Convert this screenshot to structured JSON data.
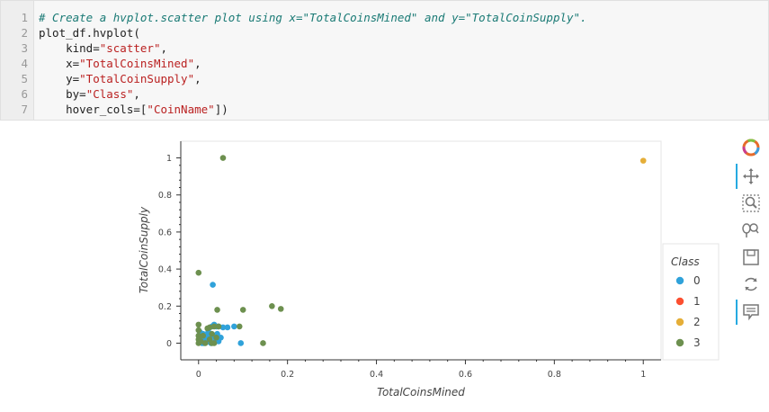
{
  "code_cell": {
    "lines": [
      {
        "n": "1",
        "segments": [
          {
            "t": "# Create a hvplot.scatter plot using x=\"TotalCoinsMined\" and y=\"TotalCoinSupply\".",
            "c": "comment"
          }
        ]
      },
      {
        "n": "2",
        "segments": [
          {
            "t": "plot_df.hvplot(",
            "c": ""
          }
        ]
      },
      {
        "n": "3",
        "segments": [
          {
            "t": "    kind=",
            "c": ""
          },
          {
            "t": "\"scatter\"",
            "c": "str"
          },
          {
            "t": ",",
            "c": ""
          }
        ]
      },
      {
        "n": "4",
        "segments": [
          {
            "t": "    x=",
            "c": ""
          },
          {
            "t": "\"TotalCoinsMined\"",
            "c": "str"
          },
          {
            "t": ",",
            "c": ""
          }
        ]
      },
      {
        "n": "5",
        "segments": [
          {
            "t": "    y=",
            "c": ""
          },
          {
            "t": "\"TotalCoinSupply\"",
            "c": "str"
          },
          {
            "t": ",",
            "c": ""
          }
        ]
      },
      {
        "n": "6",
        "segments": [
          {
            "t": "    by=",
            "c": ""
          },
          {
            "t": "\"Class\"",
            "c": "str"
          },
          {
            "t": ",",
            "c": ""
          }
        ]
      },
      {
        "n": "7",
        "segments": [
          {
            "t": "    hover_cols=[",
            "c": ""
          },
          {
            "t": "\"CoinName\"",
            "c": "str"
          },
          {
            "t": "])",
            "c": ""
          }
        ]
      }
    ]
  },
  "chart_data": {
    "type": "scatter",
    "xlabel": "TotalCoinsMined",
    "ylabel": "TotalCoinSupply",
    "xlim": [
      -0.04,
      1.04
    ],
    "ylim": [
      -0.09,
      1.09
    ],
    "x_ticks": [
      "0",
      "0.2",
      "0.4",
      "0.6",
      "0.8",
      "1"
    ],
    "x_tick_values": [
      0,
      0.2,
      0.4,
      0.6,
      0.8,
      1
    ],
    "y_ticks": [
      "0",
      "0.2",
      "0.4",
      "0.6",
      "0.8",
      "1"
    ],
    "y_tick_values": [
      0,
      0.2,
      0.4,
      0.6,
      0.8,
      1
    ],
    "legend_title": "Class",
    "legend_position": "right",
    "series": [
      {
        "name": "0",
        "color": "#30a2da",
        "points": [
          [
            0.003,
            0.06
          ],
          [
            0.006,
            0.02
          ],
          [
            0.01,
            0.05
          ],
          [
            0.012,
            0.0
          ],
          [
            0.015,
            0.03
          ],
          [
            0.018,
            0.045
          ],
          [
            0.02,
            0.01
          ],
          [
            0.022,
            0.06
          ],
          [
            0.025,
            0.03
          ],
          [
            0.028,
            0.0
          ],
          [
            0.03,
            0.09
          ],
          [
            0.032,
            0.04
          ],
          [
            0.035,
            0.1
          ],
          [
            0.038,
            0.02
          ],
          [
            0.04,
            0.09
          ],
          [
            0.042,
            0.05
          ],
          [
            0.045,
            0.09
          ],
          [
            0.05,
            0.03
          ],
          [
            0.055,
            0.085
          ],
          [
            0.065,
            0.085
          ],
          [
            0.08,
            0.09
          ],
          [
            0.095,
            0.0
          ],
          [
            0.032,
            0.315
          ],
          [
            0.008,
            0.0
          ],
          [
            0.045,
            0.01
          ]
        ]
      },
      {
        "name": "1",
        "color": "#fc4f30",
        "points": []
      },
      {
        "name": "2",
        "color": "#e5ae38",
        "points": [
          [
            1.0,
            0.985
          ]
        ]
      },
      {
        "name": "3",
        "color": "#6d904f",
        "points": [
          [
            0.0,
            0.38
          ],
          [
            0.055,
            1.0
          ],
          [
            0.0,
            0.1
          ],
          [
            0.0,
            0.07
          ],
          [
            0.0,
            0.04
          ],
          [
            0.0,
            0.02
          ],
          [
            0.0,
            0.0
          ],
          [
            0.005,
            0.01
          ],
          [
            0.01,
            0.04
          ],
          [
            0.015,
            0.0
          ],
          [
            0.02,
            0.08
          ],
          [
            0.025,
            0.02
          ],
          [
            0.03,
            0.05
          ],
          [
            0.035,
            0.0
          ],
          [
            0.04,
            0.03
          ],
          [
            0.042,
            0.18
          ],
          [
            0.045,
            0.09
          ],
          [
            0.1,
            0.18
          ],
          [
            0.092,
            0.09
          ],
          [
            0.145,
            0.0
          ],
          [
            0.165,
            0.2
          ],
          [
            0.185,
            0.185
          ],
          [
            0.025,
            0.085
          ],
          [
            0.035,
            0.09
          ],
          [
            0.03,
            0.0
          ]
        ]
      }
    ]
  },
  "toolbar": {
    "tools": [
      "bokeh-logo-icon",
      "pan-icon",
      "box-zoom-icon",
      "wheel-zoom-icon",
      "save-icon",
      "reset-icon",
      "hover-icon"
    ]
  }
}
